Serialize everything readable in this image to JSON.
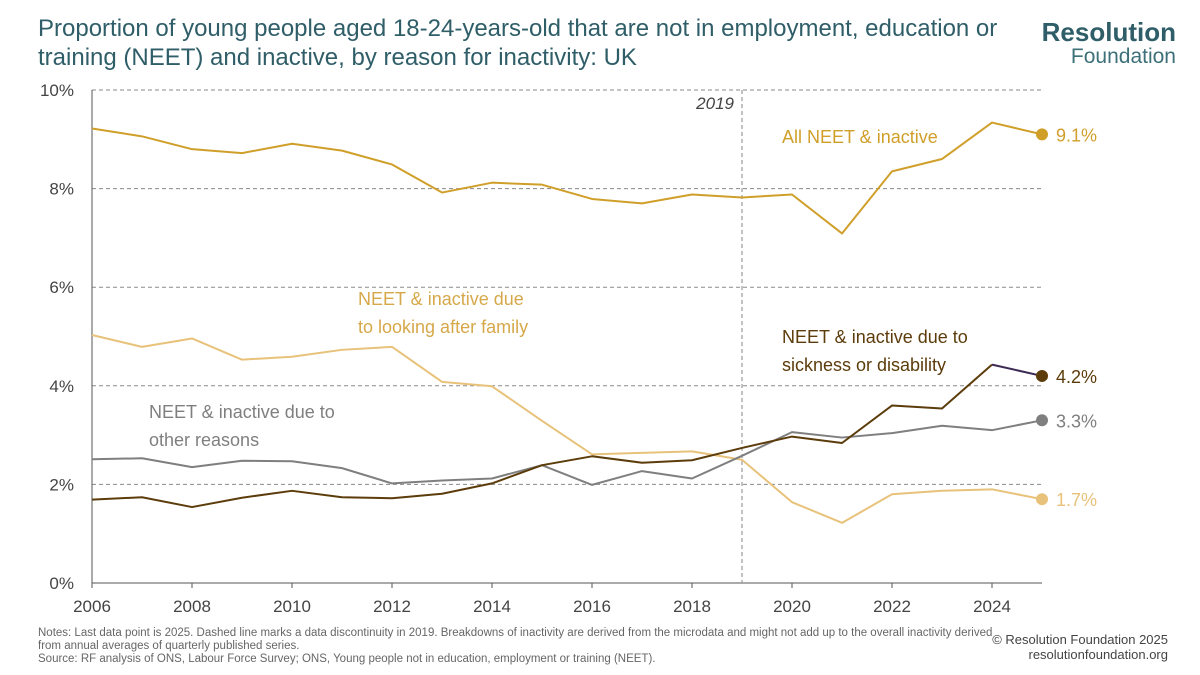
{
  "header": {
    "title": "Proportion of young people aged 18-24-years-old that are not in employment, education or training (NEET) and inactive, by reason for inactivity: UK",
    "logo_line1": "Resolution",
    "logo_line2": "Foundation"
  },
  "footer": {
    "notes": "Notes: Last data point is 2025. Dashed line marks a data discontinuity in 2019. Breakdowns of inactivity are derived from the microdata and might not add up to the overall inactivity derived from annual averages of quarterly published series.",
    "source": "Source: RF analysis of ONS, Labour Force Survey; ONS, Young people not in education, employment or training (NEET).",
    "copyright": "© Resolution Foundation 2025",
    "website": "resolutionfoundation.org"
  },
  "chart_data": {
    "type": "line",
    "title": "Proportion of young people aged 18-24-years-old that are not in employment, education or training (NEET) and inactive, by reason for inactivity: UK",
    "xlabel": "",
    "ylabel": "",
    "x": [
      2006,
      2007,
      2008,
      2009,
      2010,
      2011,
      2012,
      2013,
      2014,
      2015,
      2016,
      2017,
      2018,
      2019,
      2020,
      2021,
      2022,
      2023,
      2024,
      2025
    ],
    "xlim": [
      2006,
      2025
    ],
    "ylim": [
      0,
      10
    ],
    "x_ticks": [
      "2006",
      "2008",
      "2010",
      "2012",
      "2014",
      "2016",
      "2018",
      "2020",
      "2022",
      "2024"
    ],
    "y_ticks": [
      "0%",
      "2%",
      "4%",
      "6%",
      "8%",
      "10%"
    ],
    "grid": "horizontal dashed",
    "discontinuity": {
      "x": 2019,
      "label": "2019"
    },
    "series": [
      {
        "name": "All NEET & inactive",
        "color": "#d09f2a",
        "values": [
          9.22,
          9.06,
          8.8,
          8.72,
          8.91,
          8.77,
          8.49,
          7.92,
          8.12,
          8.08,
          7.79,
          7.7,
          7.88,
          7.82,
          7.88,
          7.09,
          8.35,
          8.6,
          9.34,
          9.1
        ],
        "end_label": "9.1%",
        "label_lines": [
          "All NEET & inactive"
        ]
      },
      {
        "name": "NEET & inactive due to looking after family",
        "color": "#e8c27a",
        "values": [
          5.03,
          4.79,
          4.96,
          4.53,
          4.59,
          4.73,
          4.79,
          4.08,
          3.99,
          3.29,
          2.61,
          2.64,
          2.67,
          2.5,
          1.64,
          1.22,
          1.8,
          1.87,
          1.9,
          1.7
        ],
        "end_label": "1.7%",
        "label_lines": [
          "NEET & inactive due",
          "to looking after family"
        ]
      },
      {
        "name": "NEET & inactive due to other reasons",
        "color": "#7f7f7f",
        "values": [
          2.51,
          2.53,
          2.35,
          2.48,
          2.47,
          2.33,
          2.02,
          2.08,
          2.12,
          2.39,
          1.99,
          2.27,
          2.12,
          2.58,
          3.06,
          2.95,
          3.04,
          3.19,
          3.1,
          3.3
        ],
        "end_label": "3.3%",
        "label_lines": [
          "NEET & inactive due to",
          "other reasons"
        ]
      },
      {
        "name": "NEET & inactive due to sickness or disability",
        "color": "#5c3c0a",
        "end_color": "#3c2a55",
        "values": [
          1.69,
          1.74,
          1.54,
          1.73,
          1.87,
          1.74,
          1.72,
          1.81,
          2.02,
          2.39,
          2.57,
          2.44,
          2.49,
          2.74,
          2.97,
          2.84,
          3.6,
          3.54,
          4.43,
          4.2
        ],
        "end_label": "4.2%",
        "label_lines": [
          "NEET & inactive due to",
          "sickness or disability"
        ]
      }
    ]
  }
}
